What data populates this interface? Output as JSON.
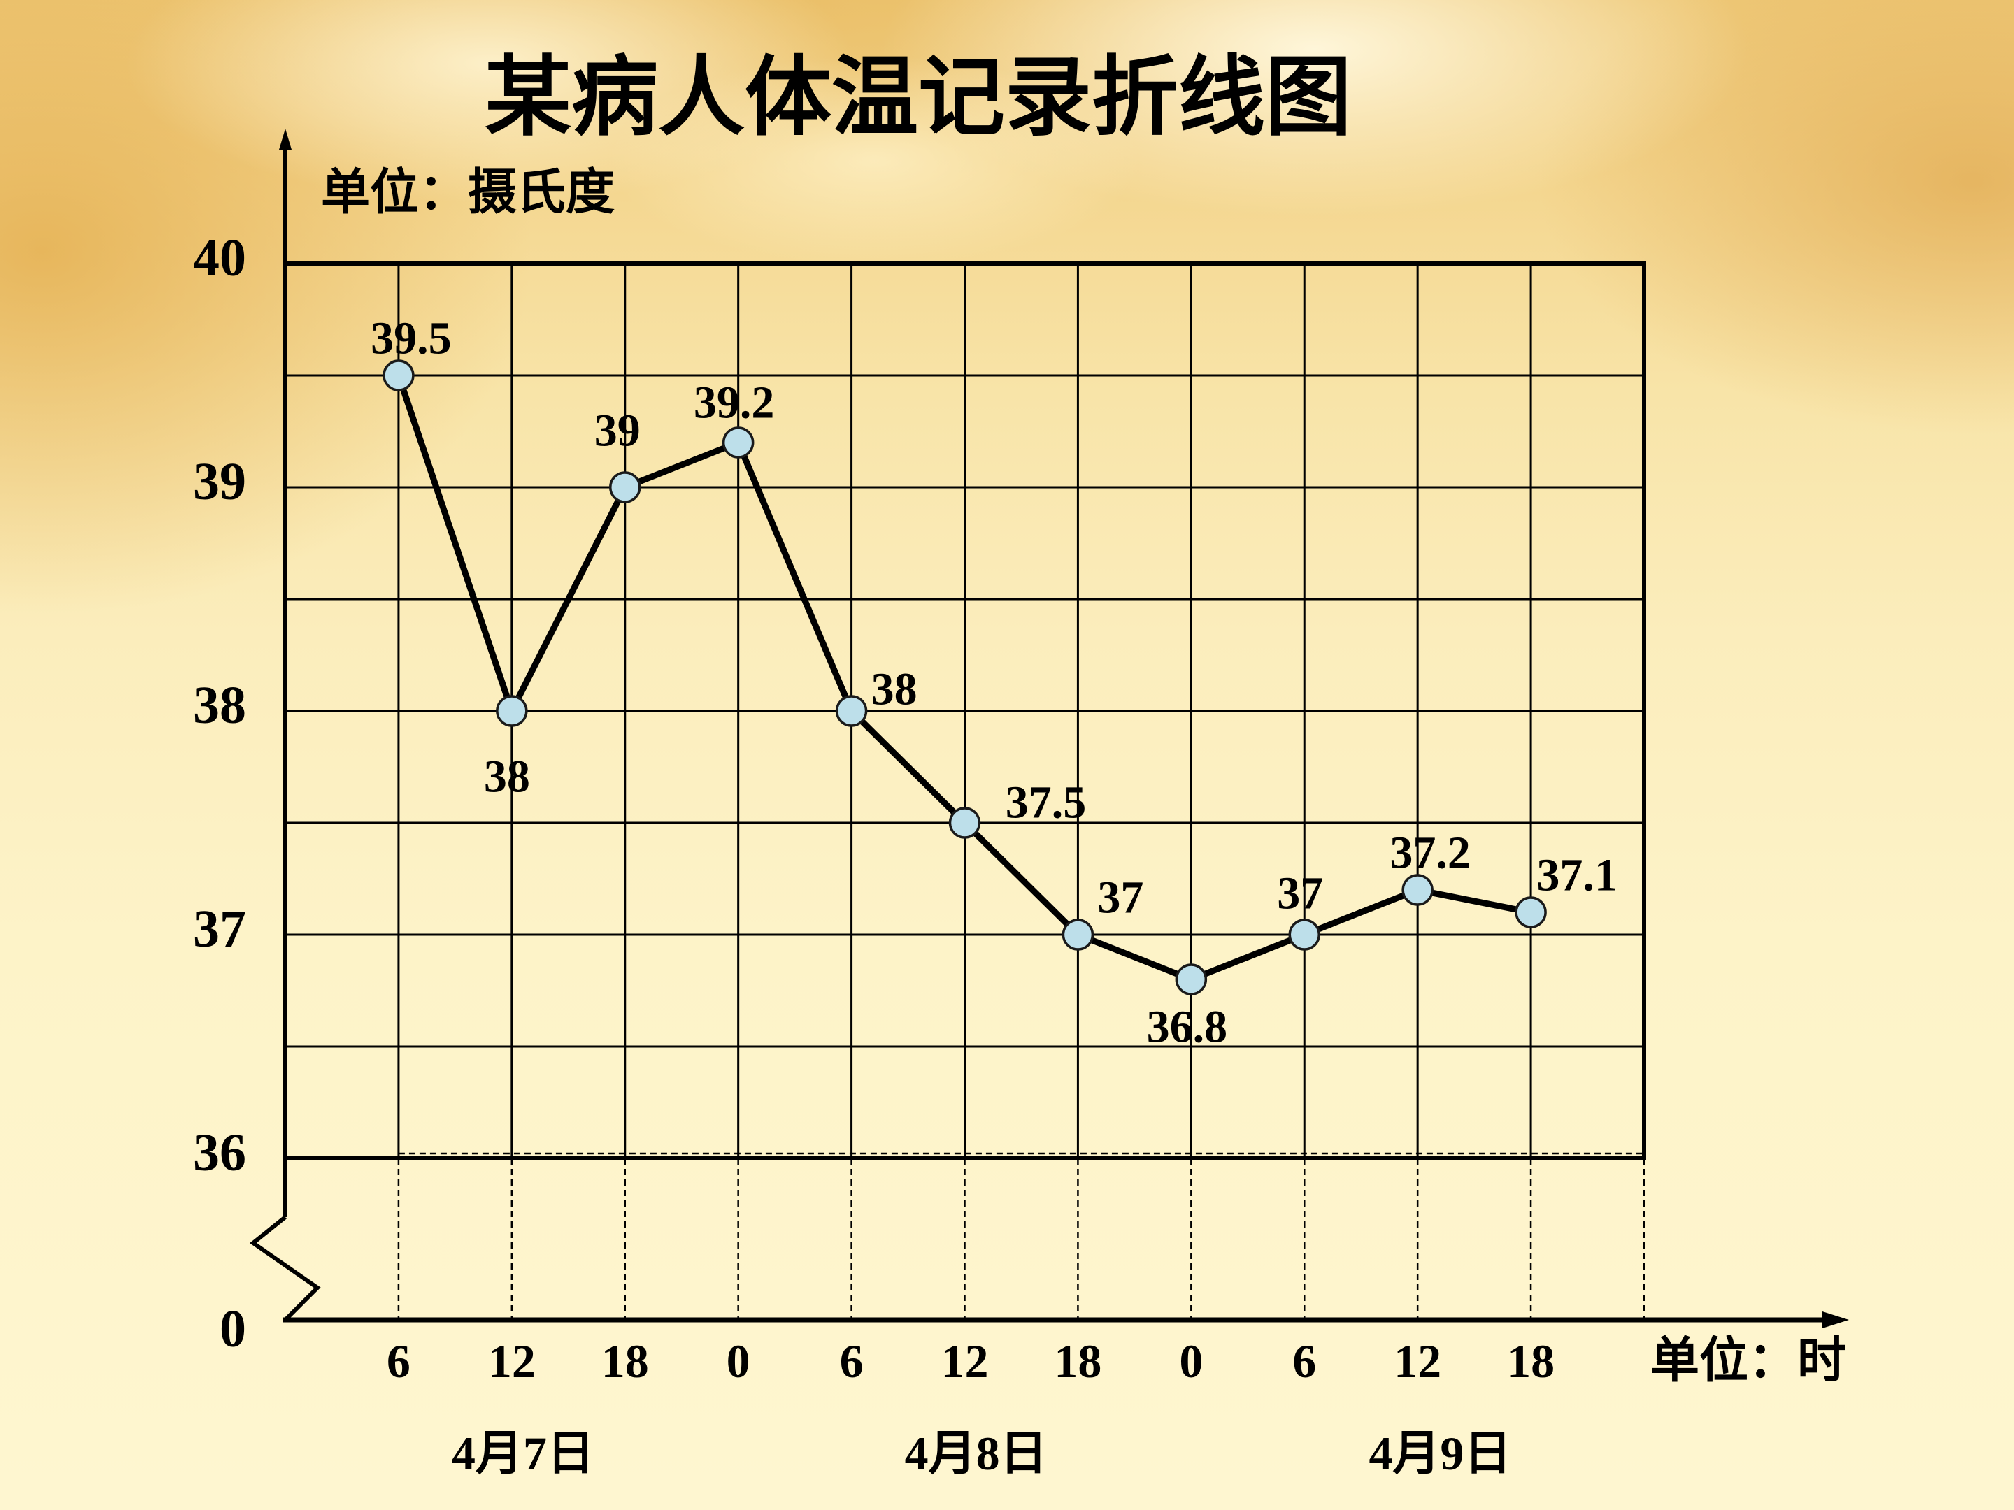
{
  "chart_data": {
    "type": "line",
    "title": "某病人体温记录折线图",
    "ylabel": "单位：摄氏度",
    "xlabel": "单位：时",
    "y_origin_label": "0",
    "ylim": [
      36,
      40
    ],
    "y_ticks": [
      40,
      39,
      38,
      37,
      36
    ],
    "y_minor_step": 0.5,
    "y_axis_break": true,
    "categories": [
      "6",
      "12",
      "18",
      "0",
      "6",
      "12",
      "18",
      "0",
      "6",
      "12",
      "18"
    ],
    "day_labels": [
      "4月7日",
      "4月8日",
      "4月9日"
    ],
    "series": [
      {
        "values": [
          39.5,
          38,
          39,
          39.2,
          38,
          37.5,
          37,
          36.8,
          37,
          37.2,
          37.1
        ],
        "data_labels": true
      }
    ],
    "grid": true
  },
  "colors": {
    "line": "#000000",
    "grid": "#000000",
    "marker_fill": "#bddfea",
    "marker_stroke": "#1a1a1a",
    "text": "#000000"
  }
}
